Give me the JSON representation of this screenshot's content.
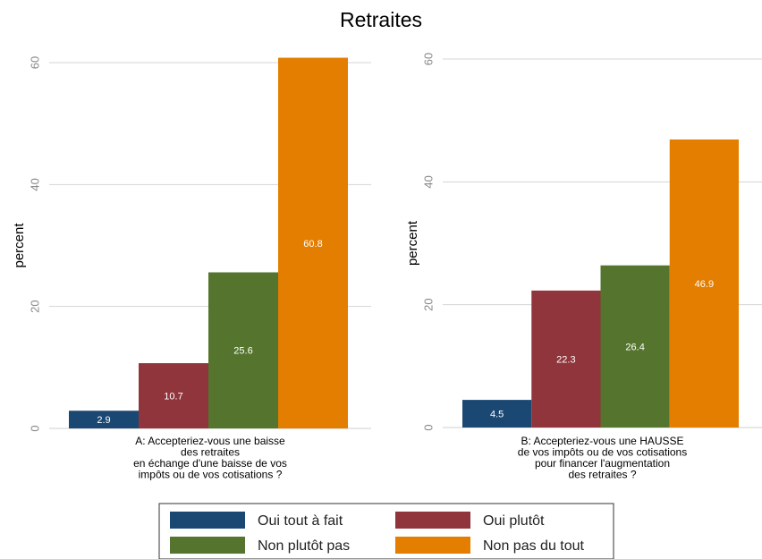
{
  "chart_data": {
    "type": "bar",
    "title": "Retraites",
    "ylabel": "percent",
    "ylim": [
      0,
      60
    ],
    "yticks": [
      "0",
      "20",
      "40",
      "60"
    ],
    "grid": true,
    "legend_position": "bottom",
    "series_names": [
      "Oui tout à fait",
      "Oui plutôt",
      "Non plutôt pas",
      "Non pas du tout"
    ],
    "colors": [
      "#1b4873",
      "#90353b",
      "#55752f",
      "#e37e00"
    ],
    "panels": [
      {
        "xlabel_lines": [
          "A: Accepteriez-vous une baisse",
          "des retraites",
          "en échange d'une baisse de vos",
          "impôts ou de vos cotisations ?"
        ],
        "values": [
          2.9,
          10.7,
          25.6,
          60.8
        ],
        "value_labels": [
          "2.9",
          "10.7",
          "25.6",
          "60.8"
        ]
      },
      {
        "xlabel_lines": [
          "B: Accepteriez-vous une HAUSSE",
          "de vos impôts ou de vos cotisations",
          "pour financer l'augmentation",
          "des retraites ?"
        ],
        "values": [
          4.5,
          22.3,
          26.4,
          46.9
        ],
        "value_labels": [
          "4.5",
          "22.3",
          "26.4",
          "46.9"
        ]
      }
    ]
  }
}
